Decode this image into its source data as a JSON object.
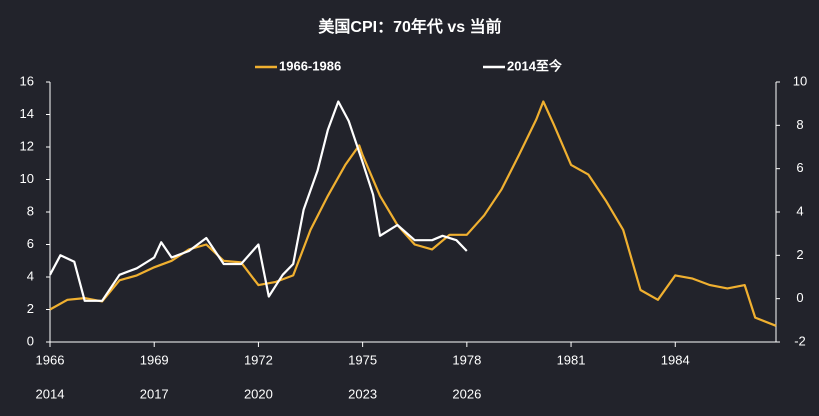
{
  "chart_data": {
    "type": "line",
    "title": "美国CPI：70年代 vs 当前",
    "xlim": [
      1966,
      1986.9
    ],
    "xticks": [
      1966,
      1969,
      1972,
      1975,
      1978,
      1981,
      1984
    ],
    "x2lim": [
      2014,
      2034.9
    ],
    "x2ticks": [
      2014,
      2017,
      2020,
      2023,
      2026
    ],
    "ylim": [
      0,
      16
    ],
    "yticks": [
      0,
      2,
      4,
      6,
      8,
      10,
      12,
      14,
      16
    ],
    "y2lim": [
      -2,
      10
    ],
    "y2ticks": [
      -2,
      0,
      2,
      4,
      6,
      8,
      10
    ],
    "legend": "top",
    "series": [
      {
        "name": "1966-1986",
        "color": "#f0b030",
        "x": [
          1966.0,
          1966.5,
          1967.0,
          1967.5,
          1968.0,
          1968.5,
          1969.0,
          1969.5,
          1970.0,
          1970.5,
          1971.0,
          1971.5,
          1972.0,
          1972.5,
          1973.0,
          1973.5,
          1974.0,
          1974.5,
          1974.9,
          1975.0,
          1975.5,
          1976.0,
          1976.5,
          1977.0,
          1977.5,
          1978.0,
          1978.5,
          1979.0,
          1979.5,
          1980.0,
          1980.2,
          1980.5,
          1981.0,
          1981.5,
          1982.0,
          1982.5,
          1983.0,
          1983.5,
          1984.0,
          1984.5,
          1985.0,
          1985.5,
          1986.0,
          1986.3,
          1986.9
        ],
        "values": [
          2.0,
          2.6,
          2.7,
          2.5,
          3.8,
          4.1,
          4.6,
          5.0,
          5.7,
          6.0,
          5.0,
          4.9,
          3.5,
          3.7,
          4.1,
          6.9,
          9.0,
          10.9,
          12.1,
          11.5,
          9.0,
          7.2,
          6.0,
          5.7,
          6.6,
          6.6,
          7.8,
          9.4,
          11.5,
          13.7,
          14.8,
          13.4,
          10.9,
          10.3,
          8.7,
          6.9,
          3.2,
          2.6,
          4.1,
          3.9,
          3.5,
          3.3,
          3.5,
          1.5,
          1.0
        ]
      },
      {
        "name": "2014至今",
        "color": "#ffffff",
        "axis": "y2",
        "xaxis": "x2",
        "x": [
          2014.0,
          2014.3,
          2014.7,
          2015.0,
          2015.5,
          2016.0,
          2016.5,
          2017.0,
          2017.2,
          2017.5,
          2018.0,
          2018.5,
          2019.0,
          2019.5,
          2020.0,
          2020.3,
          2020.7,
          2021.0,
          2021.3,
          2021.7,
          2022.0,
          2022.3,
          2022.6,
          2023.0,
          2023.3,
          2023.5,
          2024.0,
          2024.5,
          2025.0,
          2025.3,
          2025.7,
          2026.0
        ],
        "values": [
          1.1,
          2.0,
          1.7,
          -0.1,
          -0.1,
          1.1,
          1.4,
          1.9,
          2.6,
          1.9,
          2.2,
          2.8,
          1.6,
          1.6,
          2.5,
          0.1,
          1.1,
          1.6,
          4.1,
          5.9,
          7.8,
          9.1,
          8.2,
          6.3,
          4.8,
          2.9,
          3.4,
          2.7,
          2.7,
          2.9,
          2.7,
          2.2
        ]
      }
    ]
  }
}
